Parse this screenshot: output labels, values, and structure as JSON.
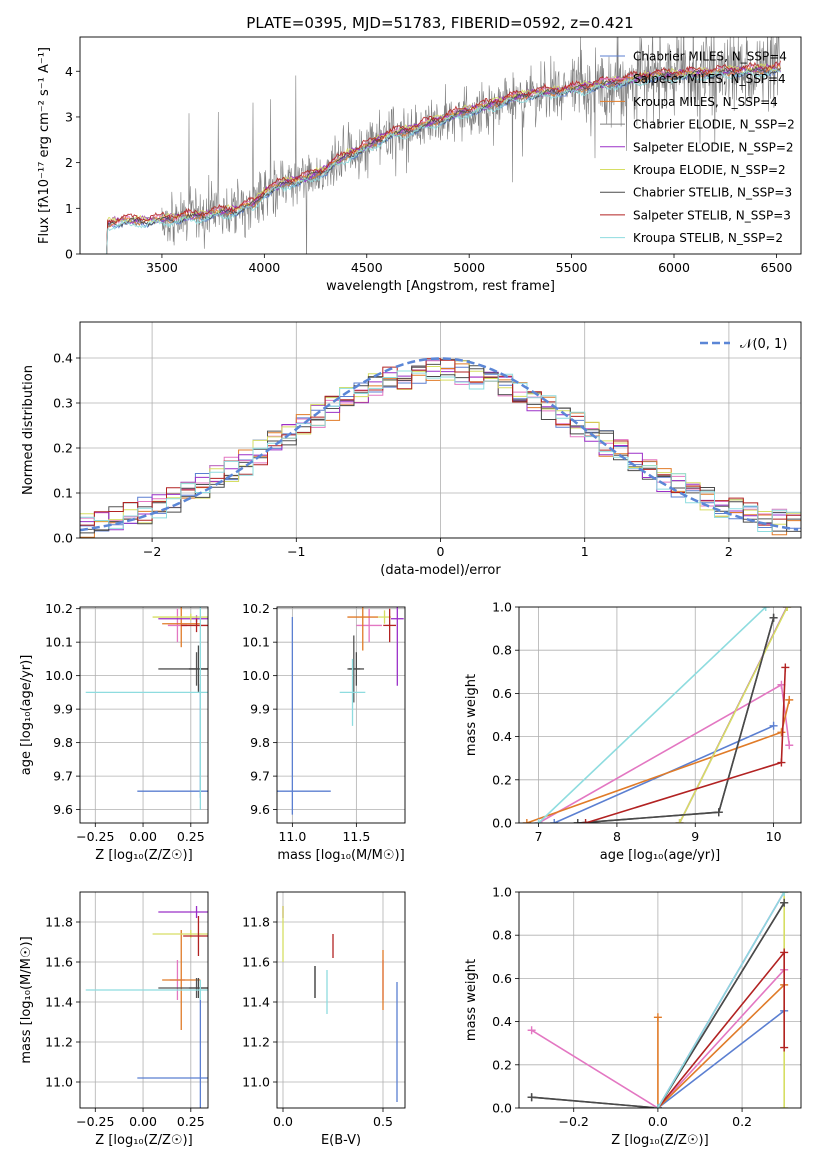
{
  "colors": {
    "ChabrierMILES": "#5b7fd1",
    "SalpeterMILES": "#e377c2",
    "KroupaMILES": "#e07b28",
    "ChabrierELODIE": "#555555",
    "SalpeterELODIE": "#9b30c8",
    "KroupaELODIE": "#d6de63",
    "ChabrierSTELIB": "#4a4a4a",
    "SalpeterSTELIB": "#b22222",
    "KroupaSTELIB": "#8edcdf",
    "data": "#7f7f7f",
    "normal": "#5b86d6",
    "grid": "#b0b0b0"
  },
  "chart_data": [
    {
      "id": "spectrum",
      "type": "line",
      "title": "PLATE=0395, MJD=51783, FIBERID=0592, z=0.421",
      "xlabel": "wavelength [Angstrom, rest frame]",
      "ylabel": "Flux [f$_\\lambda$10$^{-17}$ erg cm$^{-2}$ s$^{-1}$ A$^{-1}$]",
      "ylabel_text": "Flux [fλ10⁻¹⁷ erg cm⁻² s⁻¹ A⁻¹]",
      "xlim": [
        3100,
        6620
      ],
      "ylim": [
        0,
        4.75
      ],
      "xticks": [
        3500,
        4000,
        4500,
        5000,
        5500,
        6000,
        6500
      ],
      "yticks": [
        0,
        1,
        2,
        3,
        4
      ],
      "grid": false,
      "legend_position": "top-right",
      "continuum_knots": [
        [
          3230,
          0.65
        ],
        [
          3270,
          0.7
        ],
        [
          3300,
          0.72
        ],
        [
          3400,
          0.72
        ],
        [
          3500,
          0.75
        ],
        [
          3700,
          0.85
        ],
        [
          3850,
          0.95
        ],
        [
          3950,
          1.1
        ],
        [
          4000,
          1.35
        ],
        [
          4100,
          1.55
        ],
        [
          4200,
          1.65
        ],
        [
          4300,
          1.85
        ],
        [
          4400,
          2.15
        ],
        [
          4500,
          2.35
        ],
        [
          4600,
          2.6
        ],
        [
          4700,
          2.7
        ],
        [
          4800,
          2.85
        ],
        [
          4900,
          3.0
        ],
        [
          5000,
          3.15
        ],
        [
          5100,
          3.25
        ],
        [
          5200,
          3.4
        ],
        [
          5300,
          3.5
        ],
        [
          5500,
          3.6
        ],
        [
          5700,
          3.75
        ],
        [
          5900,
          3.9
        ],
        [
          6100,
          3.95
        ],
        [
          6300,
          4.0
        ],
        [
          6500,
          4.05
        ]
      ],
      "series": [
        {
          "name": "Chabrier MILES, N$_{SSP}$=4",
          "label_text": "Chabrier MILES, N_SSP=4",
          "color_key": "ChabrierMILES",
          "offset": -0.05
        },
        {
          "name": "Salpeter MILES, N$_{SSP}$=4",
          "label_text": "Salpeter MILES, N_SSP=4",
          "color_key": "SalpeterMILES",
          "offset": 0.03
        },
        {
          "name": "Kroupa MILES, N$_{SSP}$=4",
          "label_text": "Kroupa MILES, N_SSP=4",
          "color_key": "KroupaMILES",
          "offset": 0.0
        },
        {
          "name": "Chabrier ELODIE, N$_{SSP}$=2",
          "label_text": "Chabrier ELODIE, N_SSP=2",
          "color_key": "data",
          "offset": 0.0
        },
        {
          "name": "Salpeter ELODIE, N$_{SSP}$=2",
          "label_text": "Salpeter ELODIE, N_SSP=2",
          "color_key": "SalpeterELODIE",
          "offset": 0.02
        },
        {
          "name": "Kroupa ELODIE, N$_{SSP}$=2",
          "label_text": "Kroupa ELODIE, N_SSP=2",
          "color_key": "KroupaELODIE",
          "offset": 0.04
        },
        {
          "name": "Chabrier STELIB, N$_{SSP}$=3",
          "label_text": "Chabrier STELIB, N_SSP=3",
          "color_key": "ChabrierSTELIB",
          "offset": -0.02
        },
        {
          "name": "Salpeter STELIB, N$_{SSP}$=3",
          "label_text": "Salpeter STELIB, N_SSP=3",
          "color_key": "SalpeterSTELIB",
          "offset": 0.08
        },
        {
          "name": "Kroupa STELIB, N$_{SSP}$=2",
          "label_text": "Kroupa STELIB, N_SSP=2",
          "color_key": "KroupaSTELIB",
          "offset": -0.08
        }
      ]
    },
    {
      "id": "residuals",
      "type": "histogram",
      "xlabel": "(data-model)/error",
      "ylabel": "Normed distribution",
      "xlim": [
        -2.5,
        2.5
      ],
      "ylim": [
        0,
        0.48
      ],
      "xticks": [
        -2,
        -1,
        0,
        1,
        2
      ],
      "yticks": [
        0.0,
        0.1,
        0.2,
        0.3,
        0.4
      ],
      "grid": true,
      "legend_position": "top-right",
      "legend_label": "$\\mathcal{N}(0,1)$",
      "legend_text": "𝒩(0, 1)",
      "bin_width": 0.1,
      "series_color_keys": [
        "ChabrierMILES",
        "SalpeterMILES",
        "KroupaMILES",
        "ChabrierELODIE",
        "SalpeterELODIE",
        "KroupaELODIE",
        "ChabrierSTELIB",
        "SalpeterSTELIB",
        "KroupaSTELIB"
      ]
    },
    {
      "id": "age_vs_Z",
      "type": "errorbar",
      "xlabel": "Z [log$_{10}$(Z/Z$_\\odot$)]",
      "xlabel_text": "Z [log₁₀(Z/Z☉)]",
      "ylabel": "age  [log$_{10}$(age/yr)]",
      "ylabel_text": "age  [log₁₀(age/yr)]",
      "xlim": [
        -0.33,
        0.34
      ],
      "ylim": [
        9.56,
        10.205
      ],
      "xticks": [
        -0.25,
        0.0,
        0.25
      ],
      "xticklabels": [
        "−0.25",
        "0.00",
        "0.25"
      ],
      "yticks": [
        9.6,
        9.7,
        9.8,
        9.9,
        10.0,
        10.1,
        10.2
      ],
      "grid": true,
      "points": [
        {
          "c": "ChabrierMILES",
          "x": 0.3,
          "y": 9.655,
          "xerr": 0.33,
          "yerr": [
            0.02,
            0.32
          ]
        },
        {
          "c": "SalpeterMILES",
          "x": 0.18,
          "y": 10.15,
          "xerr": 0.05,
          "yerr": 0.05
        },
        {
          "c": "KroupaMILES",
          "x": 0.2,
          "y": 10.155,
          "xerr": 0.1,
          "yerr": 0.07
        },
        {
          "c": "ChabrierELODIE",
          "x": 0.28,
          "y": 10.02,
          "xerr": 0.2,
          "yerr": 0.05
        },
        {
          "c": "SalpeterELODIE",
          "x": 0.28,
          "y": 10.17,
          "xerr": 0.2,
          "yerr": 0.01
        },
        {
          "c": "KroupaELODIE",
          "x": 0.25,
          "y": 10.175,
          "xerr": 0.2,
          "yerr": 0.01
        },
        {
          "c": "ChabrierSTELIB",
          "x": 0.29,
          "y": 10.02,
          "xerr": 0.05,
          "yerr": 0.07
        },
        {
          "c": "SalpeterSTELIB",
          "x": 0.28,
          "y": 10.15,
          "xerr": 0.08,
          "yerr": 0.02
        },
        {
          "c": "KroupaSTELIB",
          "x": 0.3,
          "y": 9.95,
          "xerr": 0.6,
          "yerr": 0.35
        }
      ]
    },
    {
      "id": "age_vs_mass",
      "type": "errorbar",
      "xlabel": "mass [log$_{10}$(M/M$_\\odot$)]",
      "xlabel_text": "mass [log₁₀(M/M☉)]",
      "xlim": [
        10.88,
        11.88
      ],
      "ylim": [
        9.56,
        10.205
      ],
      "xticks": [
        11.0,
        11.5
      ],
      "yticks": [
        9.6,
        9.7,
        9.8,
        9.9,
        10.0,
        10.1,
        10.2
      ],
      "grid": true,
      "points": [
        {
          "c": "ChabrierMILES",
          "x": 11.0,
          "y": 9.655,
          "xerr": 0.3,
          "yerr": [
            0.07,
            0.52
          ]
        },
        {
          "c": "SalpeterMILES",
          "x": 11.6,
          "y": 10.15,
          "xerr": 0.1,
          "yerr": 0.05
        },
        {
          "c": "KroupaMILES",
          "x": 11.55,
          "y": 10.175,
          "xerr": 0.12,
          "yerr": 0.1
        },
        {
          "c": "ChabrierELODIE",
          "x": 11.48,
          "y": 10.02,
          "xerr": 0.05,
          "yerr": 0.1
        },
        {
          "c": "SalpeterELODIE",
          "x": 11.82,
          "y": 10.17,
          "xerr": 0.05,
          "yerr": 0.2
        },
        {
          "c": "KroupaELODIE",
          "x": 11.72,
          "y": 10.175,
          "xerr": 0.05,
          "yerr": 0.02
        },
        {
          "c": "ChabrierSTELIB",
          "x": 11.5,
          "y": 10.02,
          "xerr": 0.06,
          "yerr": 0.05
        },
        {
          "c": "SalpeterSTELIB",
          "x": 11.76,
          "y": 10.15,
          "xerr": 0.05,
          "yerr": 0.05
        },
        {
          "c": "KroupaSTELIB",
          "x": 11.47,
          "y": 9.95,
          "xerr": 0.1,
          "yerr": 0.1
        }
      ]
    },
    {
      "id": "massweight_vs_age",
      "type": "line",
      "xlabel": "age  [log$_{10}$(age/yr)]",
      "xlabel_text": "age  [log₁₀(age/yr)]",
      "ylabel": "mass weight",
      "xlim": [
        6.75,
        10.35
      ],
      "ylim": [
        0,
        1.0
      ],
      "xticks": [
        7,
        8,
        9,
        10
      ],
      "yticks": [
        0.0,
        0.2,
        0.4,
        0.6,
        0.8,
        1.0
      ],
      "grid": true,
      "series": [
        {
          "c": "ChabrierMILES",
          "points": [
            [
              7.2,
              0.0
            ],
            [
              10.0,
              0.45
            ]
          ]
        },
        {
          "c": "SalpeterMILES",
          "points": [
            [
              7.0,
              0.0
            ],
            [
              10.1,
              0.64
            ],
            [
              10.2,
              0.36
            ]
          ]
        },
        {
          "c": "KroupaMILES",
          "points": [
            [
              6.85,
              0.0
            ],
            [
              10.1,
              0.42
            ],
            [
              10.2,
              0.57
            ]
          ]
        },
        {
          "c": "ChabrierELODIE",
          "points": [
            [
              7.5,
              0.0
            ],
            [
              9.3,
              0.05
            ],
            [
              10.0,
              0.95
            ]
          ]
        },
        {
          "c": "SalpeterELODIE",
          "points": [
            [
              8.8,
              0.0
            ],
            [
              10.17,
              1.0
            ]
          ]
        },
        {
          "c": "KroupaELODIE",
          "points": [
            [
              8.8,
              0.0
            ],
            [
              10.175,
              1.0
            ]
          ]
        },
        {
          "c": "ChabrierSTELIB",
          "points": [
            [
              7.5,
              0.0
            ],
            [
              9.3,
              0.05
            ],
            [
              10.0,
              0.95
            ]
          ]
        },
        {
          "c": "SalpeterSTELIB",
          "points": [
            [
              7.6,
              0.0
            ],
            [
              10.1,
              0.28
            ],
            [
              10.15,
              0.72
            ]
          ]
        },
        {
          "c": "KroupaSTELIB",
          "points": [
            [
              7.0,
              0.0
            ],
            [
              9.9,
              1.0
            ]
          ]
        }
      ]
    },
    {
      "id": "mass_vs_Z",
      "type": "errorbar",
      "xlabel": "Z [log$_{10}$(Z/Z$_\\odot$)]",
      "xlabel_text": "Z [log₁₀(Z/Z☉)]",
      "ylabel": "mass [log$_{10}$(M/M$_\\odot$)]",
      "ylabel_text": "mass [log₁₀(M/M☉)]",
      "xlim": [
        -0.33,
        0.34
      ],
      "ylim": [
        10.87,
        11.95
      ],
      "xticks": [
        -0.25,
        0.0,
        0.25
      ],
      "xticklabels": [
        "−0.25",
        "0.00",
        "0.25"
      ],
      "yticks": [
        11.0,
        11.2,
        11.4,
        11.6,
        11.8
      ],
      "grid": true,
      "points": [
        {
          "c": "ChabrierMILES",
          "x": 0.3,
          "y": 11.02,
          "xerr": 0.33,
          "yerr": 0.4
        },
        {
          "c": "SalpeterMILES",
          "x": 0.18,
          "y": 11.51,
          "xerr": 0.04,
          "yerr": 0.1
        },
        {
          "c": "KroupaMILES",
          "x": 0.2,
          "y": 11.51,
          "xerr": 0.1,
          "yerr": 0.25
        },
        {
          "c": "ChabrierELODIE",
          "x": 0.28,
          "y": 11.47,
          "xerr": 0.2,
          "yerr": 0.05
        },
        {
          "c": "SalpeterELODIE",
          "x": 0.28,
          "y": 11.85,
          "xerr": 0.2,
          "yerr": 0.03
        },
        {
          "c": "KroupaELODIE",
          "x": 0.25,
          "y": 11.74,
          "xerr": 0.2,
          "yerr": 0.02
        },
        {
          "c": "ChabrierSTELIB",
          "x": 0.29,
          "y": 11.47,
          "xerr": 0.05,
          "yerr": 0.05
        },
        {
          "c": "SalpeterSTELIB",
          "x": 0.29,
          "y": 11.73,
          "xerr": 0.08,
          "yerr": 0.1
        },
        {
          "c": "KroupaSTELIB",
          "x": 0.3,
          "y": 11.46,
          "xerr": 0.6,
          "yerr": 0.05
        }
      ]
    },
    {
      "id": "mass_vs_EBV",
      "type": "errorbar",
      "xlabel": "E(B-V)",
      "xlim": [
        -0.03,
        0.61
      ],
      "ylim": [
        10.87,
        11.95
      ],
      "xticks": [
        0.0,
        0.5
      ],
      "xticklabels": [
        "0.0",
        "0.5"
      ],
      "yticks": [
        11.0,
        11.2,
        11.4,
        11.6,
        11.8
      ],
      "grid": true,
      "points": [
        {
          "c": "ChabrierMILES",
          "x": 0.57,
          "y": 11.2,
          "yerr": 0.3
        },
        {
          "c": "SalpeterMILES",
          "x": 0.5,
          "y": 11.51,
          "yerr": 0.1
        },
        {
          "c": "KroupaMILES",
          "x": 0.5,
          "y": 11.51,
          "yerr": 0.15
        },
        {
          "c": "ChabrierELODIE",
          "x": 0.16,
          "y": 11.5,
          "yerr": 0.08
        },
        {
          "c": "SalpeterELODIE",
          "x": 0.0,
          "y": 11.85,
          "yerr": 0.03
        },
        {
          "c": "KroupaELODIE",
          "x": 0.0,
          "y": 11.74,
          "yerr": 0.14
        },
        {
          "c": "ChabrierSTELIB",
          "x": 0.16,
          "y": 11.5,
          "yerr": 0.08
        },
        {
          "c": "SalpeterSTELIB",
          "x": 0.25,
          "y": 11.68,
          "yerr": 0.06
        },
        {
          "c": "KroupaSTELIB",
          "x": 0.22,
          "y": 11.45,
          "yerr": 0.11
        }
      ]
    },
    {
      "id": "massweight_vs_Z",
      "type": "line",
      "xlabel": "Z [log$_{10}$(Z/Z$_\\odot$)]",
      "xlabel_text": "Z [log₁₀(Z/Z☉)]",
      "ylabel": "mass weight",
      "xlim": [
        -0.33,
        0.34
      ],
      "ylim": [
        0,
        1.0
      ],
      "xticks": [
        -0.2,
        0.0,
        0.2
      ],
      "xticklabels": [
        "−0.2",
        "0.0",
        "0.2"
      ],
      "yticks": [
        0.0,
        0.2,
        0.4,
        0.6,
        0.8,
        1.0
      ],
      "grid": true,
      "series": [
        {
          "c": "ChabrierMILES",
          "points": [
            [
              0.0,
              0.0
            ],
            [
              0.3,
              0.45
            ]
          ]
        },
        {
          "c": "SalpeterMILES",
          "points": [
            [
              -0.3,
              0.36
            ],
            [
              0.0,
              0.0
            ],
            [
              0.3,
              0.64
            ]
          ]
        },
        {
          "c": "KroupaMILES",
          "points": [
            [
              0.0,
              0.42
            ],
            [
              0.0,
              0.0
            ],
            [
              0.3,
              0.57
            ]
          ]
        },
        {
          "c": "ChabrierELODIE",
          "points": [
            [
              -0.3,
              0.05
            ],
            [
              0.0,
              0.0
            ],
            [
              0.3,
              0.95
            ]
          ]
        },
        {
          "c": "SalpeterELODIE",
          "points": [
            [
              0.0,
              0.0
            ],
            [
              0.3,
              1.0
            ]
          ]
        },
        {
          "c": "KroupaELODIE",
          "points": [
            [
              0.3,
              0.0
            ],
            [
              0.3,
              1.0
            ]
          ]
        },
        {
          "c": "ChabrierSTELIB",
          "points": [
            [
              -0.3,
              0.05
            ],
            [
              0.0,
              0.0
            ],
            [
              0.3,
              0.95
            ]
          ]
        },
        {
          "c": "SalpeterSTELIB",
          "points": [
            [
              0.0,
              0.0
            ],
            [
              0.3,
              0.72
            ],
            [
              0.3,
              0.28
            ]
          ]
        },
        {
          "c": "KroupaSTELIB",
          "points": [
            [
              0.0,
              0.0
            ],
            [
              0.3,
              1.0
            ]
          ]
        }
      ]
    }
  ]
}
